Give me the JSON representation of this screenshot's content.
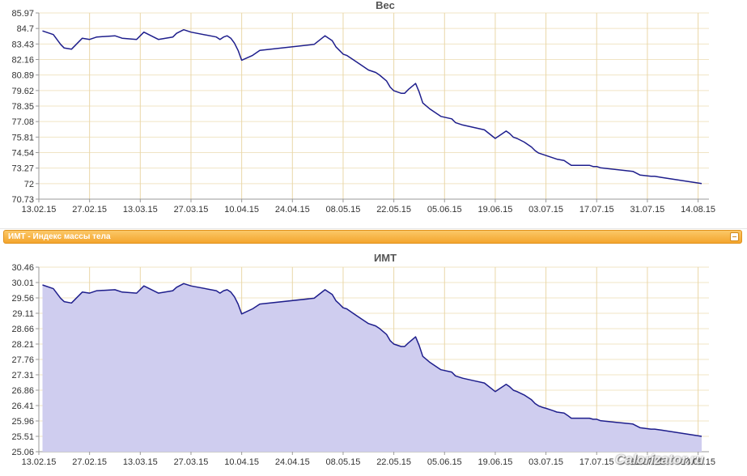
{
  "section_bar": {
    "label": "ИМТ - Индекс массы тела",
    "collapse_icon": "minus-icon"
  },
  "watermark": "Calorizator.ru",
  "x_ticks": [
    "13.02.15",
    "27.02.15",
    "13.03.15",
    "27.03.15",
    "10.04.15",
    "24.04.15",
    "08.05.15",
    "22.05.15",
    "05.06.15",
    "19.06.15",
    "03.07.15",
    "17.07.15",
    "31.07.15",
    "14.08.15"
  ],
  "colors": {
    "line": "#1e1e8c",
    "area": "#cfcdef",
    "bar": "#f4a52d"
  },
  "chart_data": [
    {
      "type": "line",
      "title": "Вес",
      "xlabel": "",
      "ylabel": "",
      "ylim": [
        70.73,
        85.97
      ],
      "yticks": [
        "85.97",
        "84.7",
        "83.43",
        "82.16",
        "80.89",
        "79.62",
        "78.35",
        "77.08",
        "75.81",
        "74.54",
        "73.27",
        "72",
        "70.73"
      ],
      "grid": true,
      "x": [
        "2015-02-14",
        "2015-02-17",
        "2015-02-19",
        "2015-02-20",
        "2015-02-22",
        "2015-02-25",
        "2015-02-27",
        "2015-03-01",
        "2015-03-06",
        "2015-03-08",
        "2015-03-12",
        "2015-03-14",
        "2015-03-18",
        "2015-03-22",
        "2015-03-23",
        "2015-03-25",
        "2015-03-27",
        "2015-04-03",
        "2015-04-04",
        "2015-04-05",
        "2015-04-06",
        "2015-04-07",
        "2015-04-08",
        "2015-04-09",
        "2015-04-10",
        "2015-04-13",
        "2015-04-15",
        "2015-04-30",
        "2015-05-03",
        "2015-05-05",
        "2015-05-06",
        "2015-05-07",
        "2015-05-08",
        "2015-05-09",
        "2015-05-11",
        "2015-05-13",
        "2015-05-15",
        "2015-05-17",
        "2015-05-18",
        "2015-05-20",
        "2015-05-21",
        "2015-05-22",
        "2015-05-24",
        "2015-05-25",
        "2015-05-26",
        "2015-05-28",
        "2015-05-29",
        "2015-05-30",
        "2015-06-01",
        "2015-06-03",
        "2015-06-04",
        "2015-06-07",
        "2015-06-08",
        "2015-06-10",
        "2015-06-13",
        "2015-06-16",
        "2015-06-19",
        "2015-06-20",
        "2015-06-22",
        "2015-06-23",
        "2015-06-24",
        "2015-06-25",
        "2015-06-27",
        "2015-06-29",
        "2015-06-30",
        "2015-07-01",
        "2015-07-02",
        "2015-07-03",
        "2015-07-05",
        "2015-07-06",
        "2015-07-08",
        "2015-07-09",
        "2015-07-10",
        "2015-07-15",
        "2015-07-16",
        "2015-07-17",
        "2015-07-18",
        "2015-07-27",
        "2015-07-29",
        "2015-08-01",
        "2015-08-02",
        "2015-08-04",
        "2015-08-15"
      ],
      "series": [
        {
          "values": [
            84.5,
            84.2,
            83.4,
            83.1,
            83.0,
            83.9,
            83.8,
            84.0,
            84.1,
            83.9,
            83.8,
            84.4,
            83.8,
            84.0,
            84.3,
            84.6,
            84.4,
            84.0,
            83.8,
            84.0,
            84.1,
            83.9,
            83.5,
            82.9,
            82.1,
            82.5,
            82.9,
            83.4,
            84.1,
            83.7,
            83.2,
            82.9,
            82.6,
            82.5,
            82.1,
            81.7,
            81.3,
            81.1,
            80.9,
            80.4,
            79.9,
            79.6,
            79.4,
            79.4,
            79.7,
            80.2,
            79.5,
            78.6,
            78.1,
            77.7,
            77.5,
            77.3,
            77.0,
            76.8,
            76.6,
            76.4,
            75.7,
            75.9,
            76.3,
            76.1,
            75.8,
            75.7,
            75.4,
            75.0,
            74.7,
            74.5,
            74.4,
            74.3,
            74.1,
            74.0,
            73.9,
            73.7,
            73.5,
            73.5,
            73.4,
            73.4,
            73.3,
            73.0,
            72.7,
            72.6,
            72.6,
            72.5,
            72.0
          ]
        }
      ]
    },
    {
      "type": "area",
      "title": "ИМТ",
      "xlabel": "",
      "ylabel": "",
      "ylim": [
        25.06,
        30.46
      ],
      "yticks": [
        "30.46",
        "30.01",
        "29.56",
        "29.11",
        "28.66",
        "28.21",
        "27.76",
        "27.31",
        "26.86",
        "26.41",
        "25.96",
        "25.51",
        "25.06"
      ],
      "grid": true,
      "x": [
        "2015-02-14",
        "2015-02-17",
        "2015-02-19",
        "2015-02-20",
        "2015-02-22",
        "2015-02-25",
        "2015-02-27",
        "2015-03-01",
        "2015-03-06",
        "2015-03-08",
        "2015-03-12",
        "2015-03-14",
        "2015-03-18",
        "2015-03-22",
        "2015-03-23",
        "2015-03-25",
        "2015-03-27",
        "2015-04-03",
        "2015-04-04",
        "2015-04-05",
        "2015-04-06",
        "2015-04-07",
        "2015-04-08",
        "2015-04-09",
        "2015-04-10",
        "2015-04-13",
        "2015-04-15",
        "2015-04-30",
        "2015-05-03",
        "2015-05-05",
        "2015-05-06",
        "2015-05-07",
        "2015-05-08",
        "2015-05-09",
        "2015-05-11",
        "2015-05-13",
        "2015-05-15",
        "2015-05-17",
        "2015-05-18",
        "2015-05-20",
        "2015-05-21",
        "2015-05-22",
        "2015-05-24",
        "2015-05-25",
        "2015-05-26",
        "2015-05-28",
        "2015-05-29",
        "2015-05-30",
        "2015-06-01",
        "2015-06-03",
        "2015-06-04",
        "2015-06-07",
        "2015-06-08",
        "2015-06-10",
        "2015-06-13",
        "2015-06-16",
        "2015-06-19",
        "2015-06-20",
        "2015-06-22",
        "2015-06-23",
        "2015-06-24",
        "2015-06-25",
        "2015-06-27",
        "2015-06-29",
        "2015-06-30",
        "2015-07-01",
        "2015-07-02",
        "2015-07-03",
        "2015-07-05",
        "2015-07-06",
        "2015-07-08",
        "2015-07-09",
        "2015-07-10",
        "2015-07-15",
        "2015-07-16",
        "2015-07-17",
        "2015-07-18",
        "2015-07-27",
        "2015-07-29",
        "2015-08-01",
        "2015-08-02",
        "2015-08-04",
        "2015-08-15"
      ],
      "series": [
        {
          "values": [
            29.94,
            29.83,
            29.55,
            29.45,
            29.41,
            29.73,
            29.7,
            29.77,
            29.8,
            29.73,
            29.7,
            29.91,
            29.7,
            29.77,
            29.87,
            29.98,
            29.91,
            29.77,
            29.7,
            29.77,
            29.8,
            29.73,
            29.59,
            29.38,
            29.09,
            29.24,
            29.38,
            29.55,
            29.8,
            29.66,
            29.48,
            29.38,
            29.27,
            29.24,
            29.09,
            28.95,
            28.81,
            28.74,
            28.67,
            28.49,
            28.31,
            28.21,
            28.14,
            28.14,
            28.24,
            28.42,
            28.17,
            27.85,
            27.67,
            27.53,
            27.46,
            27.39,
            27.28,
            27.21,
            27.14,
            27.07,
            26.82,
            26.89,
            27.03,
            26.96,
            26.86,
            26.82,
            26.72,
            26.58,
            26.47,
            26.4,
            26.36,
            26.33,
            26.26,
            26.22,
            26.19,
            26.12,
            26.04,
            26.04,
            26.01,
            26.01,
            25.97,
            25.87,
            25.76,
            25.72,
            25.72,
            25.69,
            25.51
          ]
        }
      ]
    }
  ]
}
